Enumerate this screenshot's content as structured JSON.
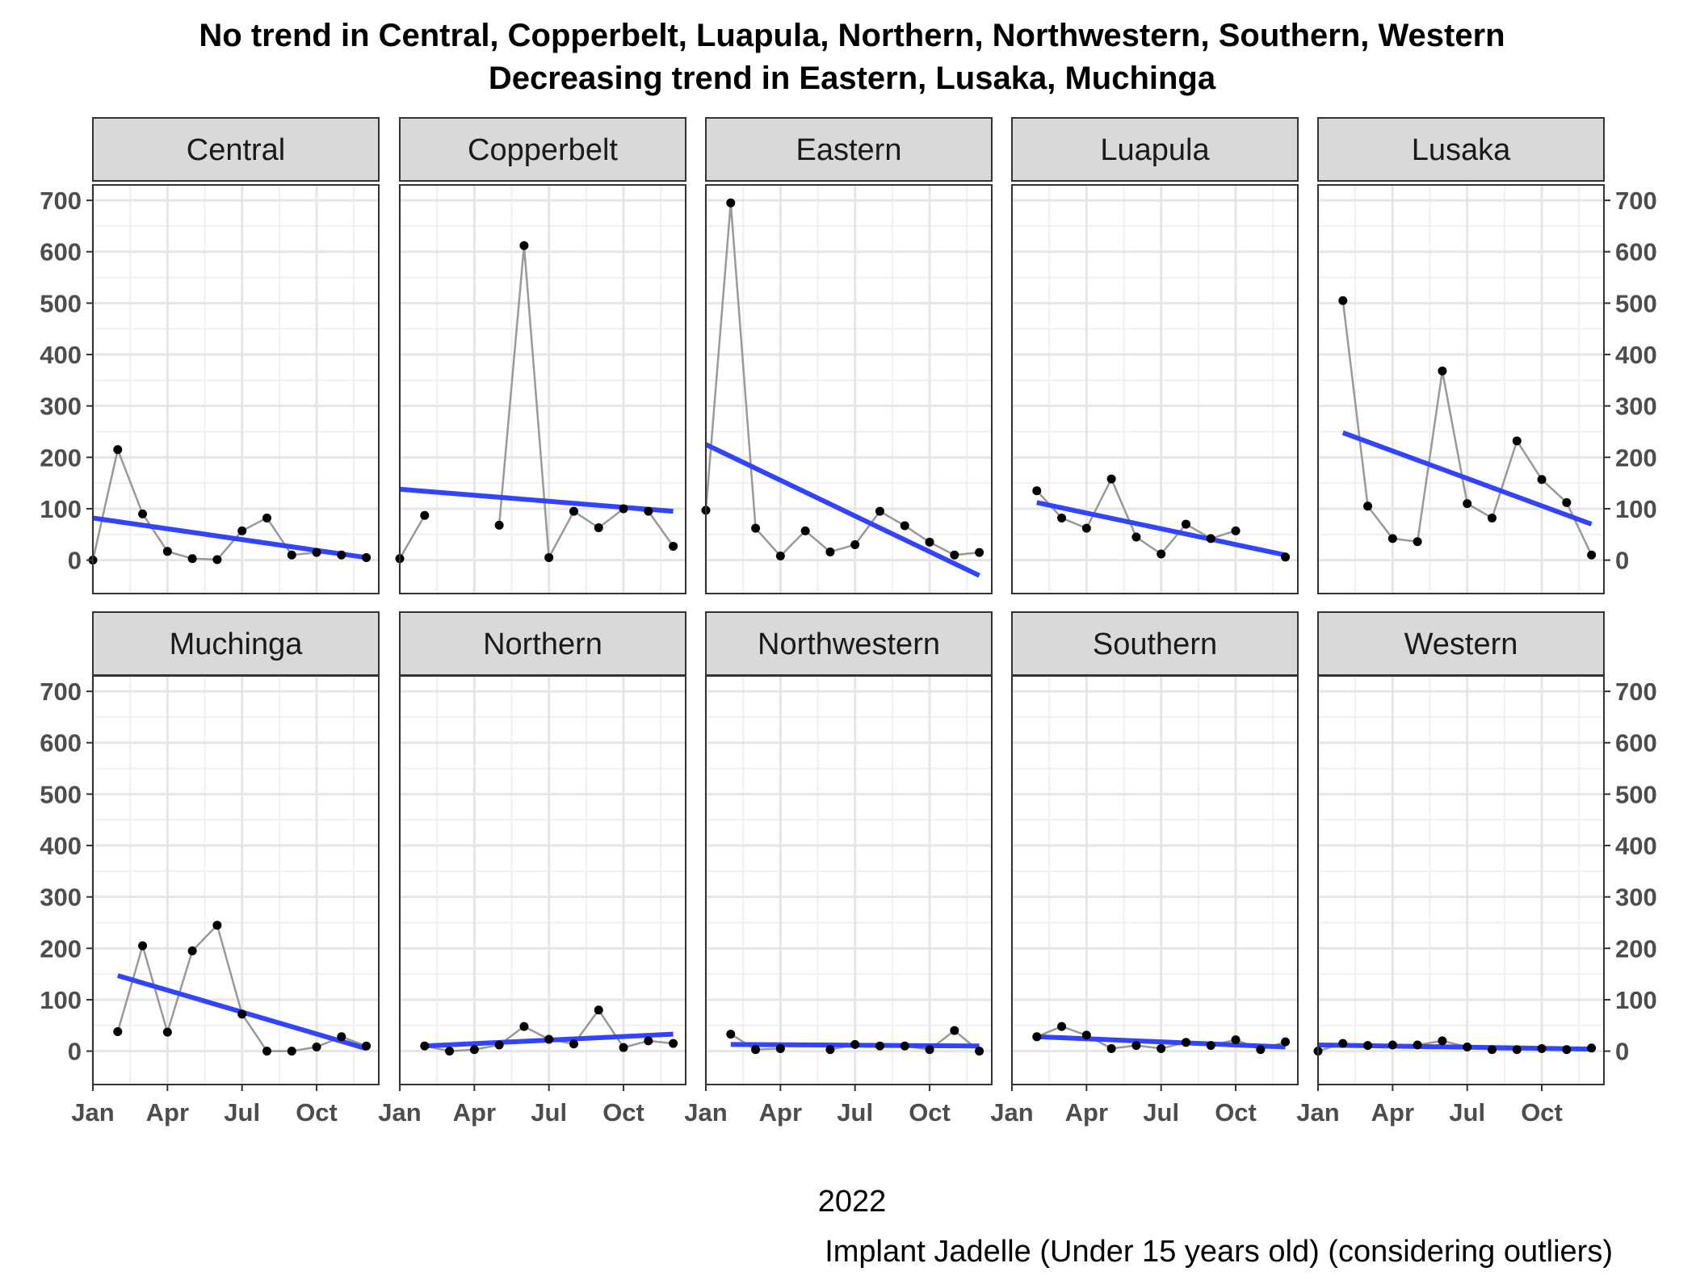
{
  "chart_data": {
    "type": "line",
    "title_lines": [
      "No trend in Central, Copperbelt, Luapula, Northern, Northwestern, Southern, Western",
      "Decreasing trend in Eastern, Lusaka, Muchinga"
    ],
    "xlabel": "2022",
    "caption": "Implant Jadelle (Under 15 years old) (considering outliers)",
    "x_ticks": [
      "Jan",
      "Apr",
      "Jul",
      "Oct"
    ],
    "y_ticks": [
      0,
      100,
      200,
      300,
      400,
      500,
      600,
      700
    ],
    "xlim": [
      0,
      11.5
    ],
    "ylim": [
      -65,
      730
    ],
    "grid": true,
    "colors": {
      "raw_line": "#999999",
      "points": "#000000",
      "trend_line": "#3344ff",
      "strip_fill": "#d9d9d9",
      "grid": "#e6e6e6"
    },
    "x": [
      "Jan",
      "Feb",
      "Mar",
      "Apr",
      "May",
      "Jun",
      "Jul",
      "Aug",
      "Sep",
      "Oct",
      "Nov",
      "Dec"
    ],
    "panels": [
      {
        "name": "Central",
        "values": [
          0,
          215,
          90,
          17,
          3,
          1,
          57,
          82,
          10,
          15,
          10,
          5
        ],
        "trend": [
          82,
          5
        ]
      },
      {
        "name": "Copperbelt",
        "values": [
          3,
          87,
          null,
          null,
          68,
          612,
          5,
          95,
          63,
          100,
          95,
          27
        ],
        "trend": [
          138,
          95
        ]
      },
      {
        "name": "Eastern",
        "values": [
          97,
          695,
          62,
          8,
          57,
          16,
          30,
          95,
          67,
          35,
          10,
          15
        ],
        "trend": [
          225,
          -30
        ]
      },
      {
        "name": "Luapula",
        "values": [
          null,
          135,
          82,
          62,
          158,
          45,
          12,
          70,
          42,
          57,
          null,
          6
        ],
        "trend": [
          112,
          10
        ]
      },
      {
        "name": "Lusaka",
        "values": [
          null,
          505,
          105,
          42,
          36,
          368,
          110,
          82,
          232,
          157,
          112,
          10
        ],
        "trend": [
          248,
          70
        ]
      },
      {
        "name": "Muchinga",
        "values": [
          null,
          38,
          205,
          37,
          195,
          245,
          72,
          0,
          0,
          8,
          28,
          10
        ],
        "trend": [
          147,
          5
        ]
      },
      {
        "name": "Northern",
        "values": [
          null,
          10,
          0,
          3,
          12,
          48,
          23,
          14,
          80,
          7,
          20,
          15
        ],
        "trend": [
          10,
          33
        ]
      },
      {
        "name": "Northwestern",
        "values": [
          null,
          33,
          3,
          5,
          null,
          3,
          13,
          10,
          10,
          3,
          40,
          0
        ],
        "trend": [
          13,
          10
        ]
      },
      {
        "name": "Southern",
        "values": [
          null,
          28,
          48,
          31,
          5,
          11,
          5,
          17,
          11,
          22,
          3,
          18
        ],
        "trend": [
          28,
          8
        ]
      },
      {
        "name": "Western",
        "values": [
          0,
          15,
          11,
          12,
          12,
          20,
          8,
          3,
          3,
          5,
          3,
          6
        ],
        "trend": [
          12,
          4
        ]
      }
    ]
  }
}
